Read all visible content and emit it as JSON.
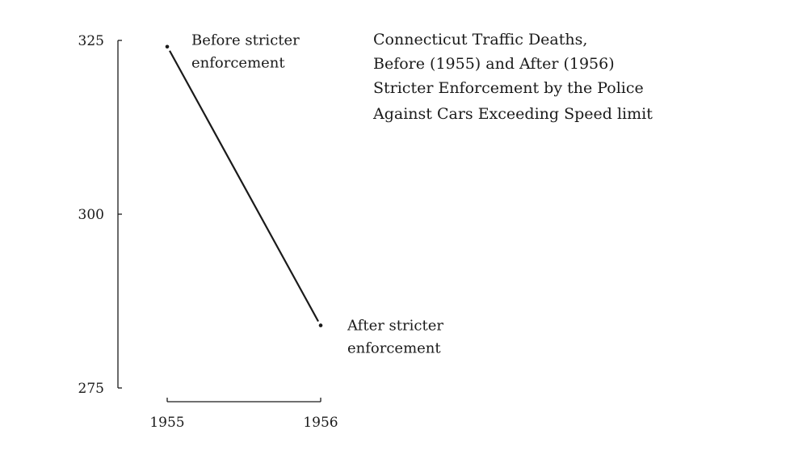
{
  "chart_data": {
    "type": "line",
    "title_lines": [
      "Connecticut Traffic Deaths,",
      "Before (1955) and After (1956)",
      "Stricter Enforcement by the Police",
      "Against Cars Exceeding Speed limit"
    ],
    "xlabel": "",
    "ylabel": "",
    "x": [
      "1955",
      "1956"
    ],
    "series": [
      {
        "values": [
          324.1,
          284.0
        ]
      }
    ],
    "point_labels": [
      [
        "Before stricter",
        "enforcement"
      ],
      [
        "After stricter",
        "enforcement"
      ]
    ],
    "y_ticks": [
      "325",
      "300",
      "275"
    ],
    "ylim": [
      275,
      325
    ],
    "grid": false,
    "legend": "none"
  }
}
